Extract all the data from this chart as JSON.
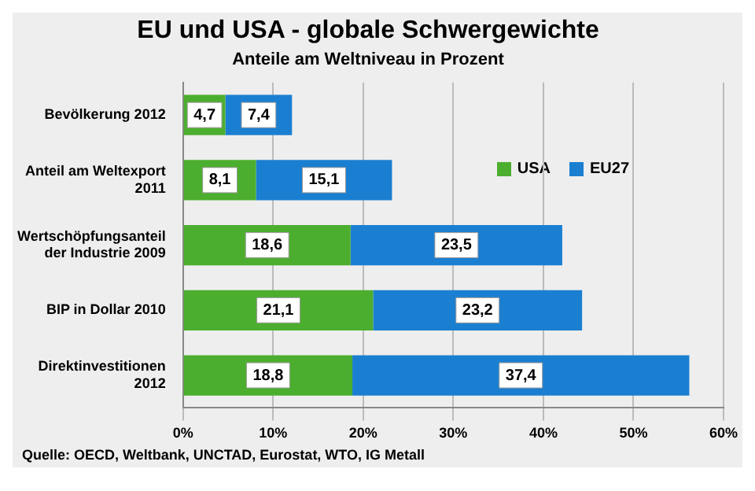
{
  "chart_data": {
    "type": "bar",
    "orientation": "horizontal",
    "stacked": true,
    "title": "EU und USA - globale Schwergewichte",
    "subtitle": "Anteile am Weltniveau in Prozent",
    "categories": [
      "Bevölkerung 2012",
      "Anteil am Weltexport 2011",
      "Wertschöpfungsanteil der Industrie 2009",
      "BIP in Dollar 2010",
      "Direktinvestitionen 2012"
    ],
    "series": [
      {
        "name": "USA",
        "color": "#4cae2e",
        "values": [
          4.7,
          8.1,
          18.6,
          21.1,
          18.8
        ],
        "value_labels": [
          "4,7",
          "8,1",
          "18,6",
          "21,1",
          "18,8"
        ]
      },
      {
        "name": "EU27",
        "color": "#1b7fd1",
        "values": [
          7.4,
          15.1,
          23.5,
          23.2,
          37.4
        ],
        "value_labels": [
          "7,4",
          "15,1",
          "23,5",
          "23,2",
          "37,4"
        ]
      }
    ],
    "xlim": [
      0,
      60
    ],
    "xticks": [
      {
        "value": 0,
        "label": "0%"
      },
      {
        "value": 10,
        "label": "10%"
      },
      {
        "value": 20,
        "label": "20%"
      },
      {
        "value": 30,
        "label": "30%"
      },
      {
        "value": 40,
        "label": "40%"
      },
      {
        "value": 50,
        "label": "50%"
      },
      {
        "value": 60,
        "label": "60%"
      }
    ],
    "grid": "x",
    "legend": "top right",
    "annotations": [
      "Quelle: OECD, Weltbank, UNCTAD, Eurostat, WTO, IG Metall"
    ]
  }
}
